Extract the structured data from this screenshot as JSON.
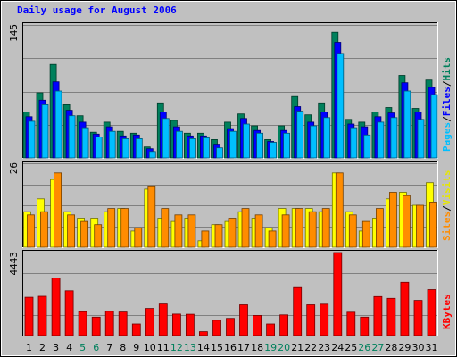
{
  "chart_data": {
    "type": "bar",
    "title": "Daily usage for August 2006",
    "categories": [
      "1",
      "2",
      "3",
      "4",
      "5",
      "6",
      "7",
      "8",
      "9",
      "10",
      "11",
      "12",
      "13",
      "14",
      "15",
      "16",
      "17",
      "18",
      "19",
      "20",
      "21",
      "22",
      "23",
      "24",
      "25",
      "26",
      "27",
      "28",
      "29",
      "30",
      "31"
    ],
    "weekend_days": [
      "5",
      "6",
      "12",
      "13",
      "19",
      "20",
      "26",
      "27"
    ],
    "grid": true,
    "panels": [
      {
        "id": "top",
        "ymax_label": "145",
        "ylim": [
          0,
          145
        ],
        "series": [
          {
            "name": "Hits",
            "color": "#00805c",
            "values": [
              50,
              71,
              102,
              58,
              46,
              28,
              39,
              29,
              27,
              12,
              60,
              41,
              27,
              27,
              20,
              39,
              48,
              35,
              20,
              35,
              67,
              47,
              60,
              137,
              42,
              39,
              50,
              55,
              90,
              54,
              85
            ]
          },
          {
            "name": "Files",
            "color": "#0000ff",
            "values": [
              45,
              63,
              83,
              52,
              39,
              26,
              34,
              24,
              25,
              10,
              50,
              34,
              24,
              24,
              15,
              32,
              43,
              30,
              18,
              30,
              56,
              39,
              50,
              126,
              37,
              34,
              45,
              49,
              82,
              50,
              77
            ]
          },
          {
            "name": "Pages",
            "color": "#00bfff",
            "values": [
              40,
              58,
              73,
              46,
              33,
              23,
              29,
              21,
              21,
              7,
              43,
              29,
              21,
              22,
              11,
              29,
              37,
              27,
              17,
              27,
              51,
              35,
              44,
              114,
              33,
              25,
              39,
              44,
              73,
              42,
              69
            ]
          }
        ]
      },
      {
        "id": "middle",
        "ymax_label": "26",
        "ylim": [
          0,
          26
        ],
        "series": [
          {
            "name": "Visits",
            "color": "#ffff00",
            "values": [
              11,
              15,
              21,
              11,
              9,
              9,
              11,
              12,
              5,
              18,
              9,
              8,
              9,
              2,
              7,
              8,
              11,
              9,
              6,
              12,
              12,
              12,
              11,
              23,
              11,
              5,
              9,
              15,
              17,
              13,
              20
            ]
          },
          {
            "name": "Sites",
            "color": "#ff8c00",
            "values": [
              10,
              11,
              23,
              10,
              8,
              7,
              12,
              12,
              6,
              19,
              12,
              10,
              10,
              5,
              7,
              9,
              12,
              10,
              5,
              10,
              12,
              11,
              12,
              23,
              10,
              8,
              12,
              17,
              16,
              13,
              14
            ]
          }
        ]
      },
      {
        "id": "bottom",
        "ymax_label": "4443",
        "ylim": [
          0,
          4443
        ],
        "series": [
          {
            "name": "KBytes",
            "color": "#ff0000",
            "values": [
              2050,
              2100,
              3080,
              2400,
              1280,
              990,
              1300,
              1260,
              620,
              1450,
              1690,
              1150,
              1140,
              210,
              820,
              920,
              1650,
              1080,
              620,
              1110,
              2570,
              1650,
              1680,
              4443,
              1250,
              990,
              2090,
              1990,
              2850,
              1880,
              2460
            ]
          }
        ]
      }
    ]
  }
}
